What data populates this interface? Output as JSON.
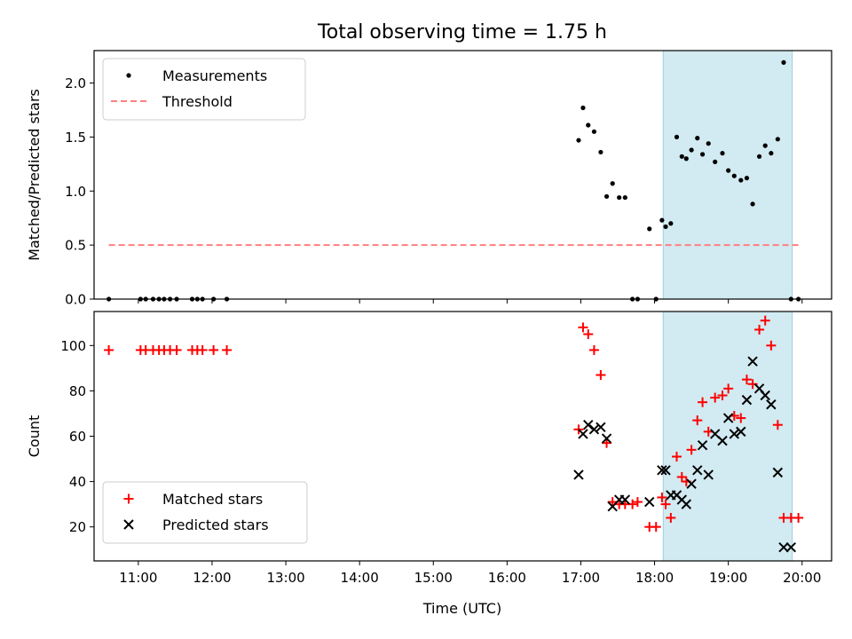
{
  "chart_data": {
    "title": "Total observing time = 1.75 h",
    "xlabel": "Time (UTC)",
    "x_ticks": [
      "11:00",
      "12:00",
      "13:00",
      "14:00",
      "15:00",
      "16:00",
      "17:00",
      "18:00",
      "19:00",
      "20:00"
    ],
    "x_tick_hours": [
      11,
      12,
      13,
      14,
      15,
      16,
      17,
      18,
      19,
      20
    ],
    "xlim_hours": [
      10.4,
      20.4
    ],
    "shaded_region_hours": [
      18.117,
      19.867
    ],
    "shaded_color": "#add8e6",
    "panels": [
      {
        "type": "scatter",
        "ylabel": "Matched/Predicted stars",
        "ylim": [
          0,
          2.3
        ],
        "y_ticks": [
          "0.0",
          "0.5",
          "1.0",
          "1.5",
          "2.0"
        ],
        "y_tick_values": [
          0,
          0.5,
          1.0,
          1.5,
          2.0
        ],
        "legend_position": "upper-left",
        "threshold": {
          "name": "Threshold",
          "y": 0.5,
          "x_range_hours": [
            10.6,
            19.95
          ],
          "color": "#ff7f7f"
        },
        "series": [
          {
            "name": "Measurements",
            "marker": "dot",
            "color": "#000000",
            "x": [
              10.6,
              11.03,
              11.1,
              11.2,
              11.28,
              11.35,
              11.43,
              11.52,
              11.73,
              11.8,
              11.87,
              12.02,
              12.2,
              16.97,
              17.03,
              17.1,
              17.18,
              17.27,
              17.35,
              17.43,
              17.52,
              17.6,
              17.7,
              17.77,
              17.93,
              18.02,
              18.1,
              18.15,
              18.22,
              18.3,
              18.37,
              18.43,
              18.5,
              18.58,
              18.65,
              18.73,
              18.82,
              18.92,
              19.0,
              19.08,
              19.17,
              19.25,
              19.33,
              19.42,
              19.5,
              19.58,
              19.67,
              19.75,
              19.85,
              19.95
            ],
            "y": [
              0.0,
              0.0,
              0.0,
              0.0,
              0.0,
              0.0,
              0.0,
              0.0,
              0.0,
              0.0,
              0.0,
              0.0,
              0.0,
              1.47,
              1.77,
              1.61,
              1.55,
              1.36,
              0.95,
              1.07,
              0.94,
              0.94,
              0.0,
              0.0,
              0.65,
              0.0,
              0.73,
              0.67,
              0.7,
              1.5,
              1.32,
              1.3,
              1.38,
              1.49,
              1.34,
              1.44,
              1.27,
              1.35,
              1.19,
              1.14,
              1.1,
              1.12,
              0.88,
              1.32,
              1.42,
              1.35,
              1.48,
              2.19,
              0.0,
              0.0
            ]
          }
        ]
      },
      {
        "type": "scatter",
        "ylabel": "Count",
        "ylim": [
          5,
          115
        ],
        "y_ticks": [
          "20",
          "40",
          "60",
          "80",
          "100"
        ],
        "y_tick_values": [
          20,
          40,
          60,
          80,
          100
        ],
        "legend_position": "lower-left",
        "series": [
          {
            "name": "Matched stars",
            "marker": "plus",
            "color": "#ff0000",
            "x": [
              10.6,
              11.03,
              11.1,
              11.2,
              11.28,
              11.35,
              11.43,
              11.52,
              11.73,
              11.8,
              11.87,
              12.02,
              12.2,
              16.97,
              17.03,
              17.1,
              17.18,
              17.27,
              17.35,
              17.43,
              17.52,
              17.6,
              17.7,
              17.77,
              17.93,
              18.02,
              18.1,
              18.15,
              18.22,
              18.3,
              18.37,
              18.43,
              18.5,
              18.58,
              18.65,
              18.73,
              18.82,
              18.92,
              19.0,
              19.08,
              19.17,
              19.25,
              19.33,
              19.42,
              19.5,
              19.58,
              19.67,
              19.75,
              19.85,
              19.95
            ],
            "y": [
              98,
              98,
              98,
              98,
              98,
              98,
              98,
              98,
              98,
              98,
              98,
              98,
              98,
              63,
              108,
              105,
              98,
              87,
              57,
              31,
              30,
              30,
              30,
              31,
              20,
              20,
              33,
              30,
              24,
              51,
              42,
              40,
              54,
              67,
              75,
              62,
              77,
              78,
              81,
              69,
              68,
              85,
              83,
              107,
              111,
              100,
              65,
              24,
              24,
              24
            ]
          },
          {
            "name": "Predicted stars",
            "marker": "cross",
            "color": "#000000",
            "x": [
              16.97,
              17.03,
              17.1,
              17.18,
              17.27,
              17.35,
              17.43,
              17.52,
              17.6,
              17.93,
              18.1,
              18.15,
              18.22,
              18.3,
              18.37,
              18.43,
              18.5,
              18.58,
              18.65,
              18.73,
              18.82,
              18.92,
              19.0,
              19.08,
              19.17,
              19.25,
              19.33,
              19.42,
              19.5,
              19.58,
              19.67,
              19.75,
              19.85
            ],
            "y": [
              43,
              61,
              65,
              63,
              64,
              59,
              29,
              32,
              32,
              31,
              45,
              45,
              34,
              34,
              32,
              30,
              39,
              45,
              56,
              43,
              61,
              58,
              68,
              61,
              62,
              76,
              93,
              81,
              78,
              74,
              44,
              11,
              11
            ]
          }
        ]
      }
    ]
  }
}
